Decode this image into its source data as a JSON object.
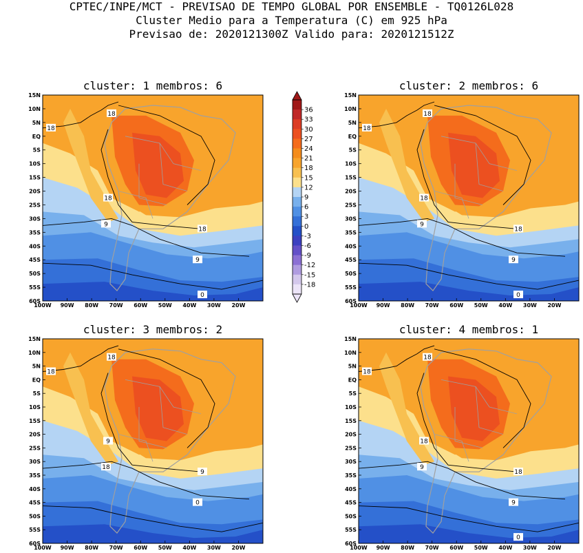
{
  "header": {
    "line1": "CPTEC/INPE/MCT - PREVISAO DE TEMPO GLOBAL POR ENSEMBLE - TQ0126L028",
    "line2": "Cluster Medio para a Temperatura (C) em 925 hPa",
    "line3": "Previsao de: 2020121300Z   Valido para: 2020121512Z"
  },
  "chart_data": [
    {
      "type": "heatmap",
      "title": "cluster: 1  membros: 6",
      "x_ticks": [
        "100W",
        "90W",
        "80W",
        "70W",
        "60W",
        "50W",
        "40W",
        "30W",
        "20W"
      ],
      "y_ticks": [
        "15N",
        "10N",
        "5N",
        "EQ",
        "5S",
        "10S",
        "15S",
        "20S",
        "25S",
        "30S",
        "35S",
        "40S",
        "45S",
        "50S",
        "55S",
        "60S"
      ],
      "xlim": [
        -100,
        -10
      ],
      "ylim": [
        -60,
        15
      ],
      "contour_labels": [
        "18",
        "18",
        "18",
        "9",
        "18",
        "9",
        "0"
      ]
    },
    {
      "type": "heatmap",
      "title": "cluster: 2  membros: 6",
      "x_ticks": [
        "100W",
        "90W",
        "80W",
        "70W",
        "60W",
        "50W",
        "40W",
        "30W",
        "20W"
      ],
      "y_ticks": [
        "15N",
        "10N",
        "5N",
        "EQ",
        "5S",
        "10S",
        "15S",
        "20S",
        "25S",
        "30S",
        "35S",
        "40S",
        "45S",
        "50S",
        "55S",
        "60S"
      ],
      "xlim": [
        -100,
        -10
      ],
      "ylim": [
        -60,
        15
      ],
      "contour_labels": [
        "18",
        "18",
        "18",
        "9",
        "18",
        "9",
        "0"
      ]
    },
    {
      "type": "heatmap",
      "title": "cluster: 3  membros: 2",
      "x_ticks": [
        "100W",
        "90W",
        "80W",
        "70W",
        "60W",
        "50W",
        "40W",
        "30W",
        "20W"
      ],
      "y_ticks": [
        "15N",
        "10N",
        "5N",
        "EQ",
        "5S",
        "10S",
        "15S",
        "20S",
        "25S",
        "30S",
        "35S",
        "40S",
        "45S",
        "50S",
        "55S",
        "60S"
      ],
      "xlim": [
        -100,
        -10
      ],
      "ylim": [
        -60,
        15
      ],
      "contour_labels": [
        "18",
        "18",
        "9",
        "18",
        "9",
        "0"
      ]
    },
    {
      "type": "heatmap",
      "title": "cluster: 4  membros: 1",
      "x_ticks": [
        "100W",
        "90W",
        "80W",
        "70W",
        "60W",
        "50W",
        "40W",
        "30W",
        "20W"
      ],
      "y_ticks": [
        "15N",
        "10N",
        "5N",
        "EQ",
        "5S",
        "10S",
        "15S",
        "20S",
        "25S",
        "30S",
        "35S",
        "40S",
        "45S",
        "50S",
        "55S",
        "60S"
      ],
      "xlim": [
        -100,
        -10
      ],
      "ylim": [
        -60,
        15
      ],
      "contour_labels": [
        "18",
        "18",
        "18",
        "9",
        "18",
        "9",
        "0"
      ]
    }
  ],
  "colorbar": {
    "labels": [
      "36",
      "33",
      "30",
      "27",
      "24",
      "21",
      "18",
      "15",
      "12",
      "9",
      "6",
      "3",
      "0",
      "-3",
      "-6",
      "-9",
      "-12",
      "-15",
      "-18"
    ],
    "colors": [
      "#a01818",
      "#c02828",
      "#dc3c24",
      "#ec5020",
      "#f46c1c",
      "#f48c1c",
      "#f8a42c",
      "#f8c050",
      "#fce08c",
      "#b4d4f4",
      "#78b0ec",
      "#5090e4",
      "#3470d8",
      "#2450c8",
      "#3c40c0",
      "#6450c8",
      "#8c70d4",
      "#b09ce0",
      "#d4c8ec",
      "#ece4f8"
    ]
  },
  "colors": {
    "land_outline": "#a0a0a0",
    "contour": "#000000"
  }
}
